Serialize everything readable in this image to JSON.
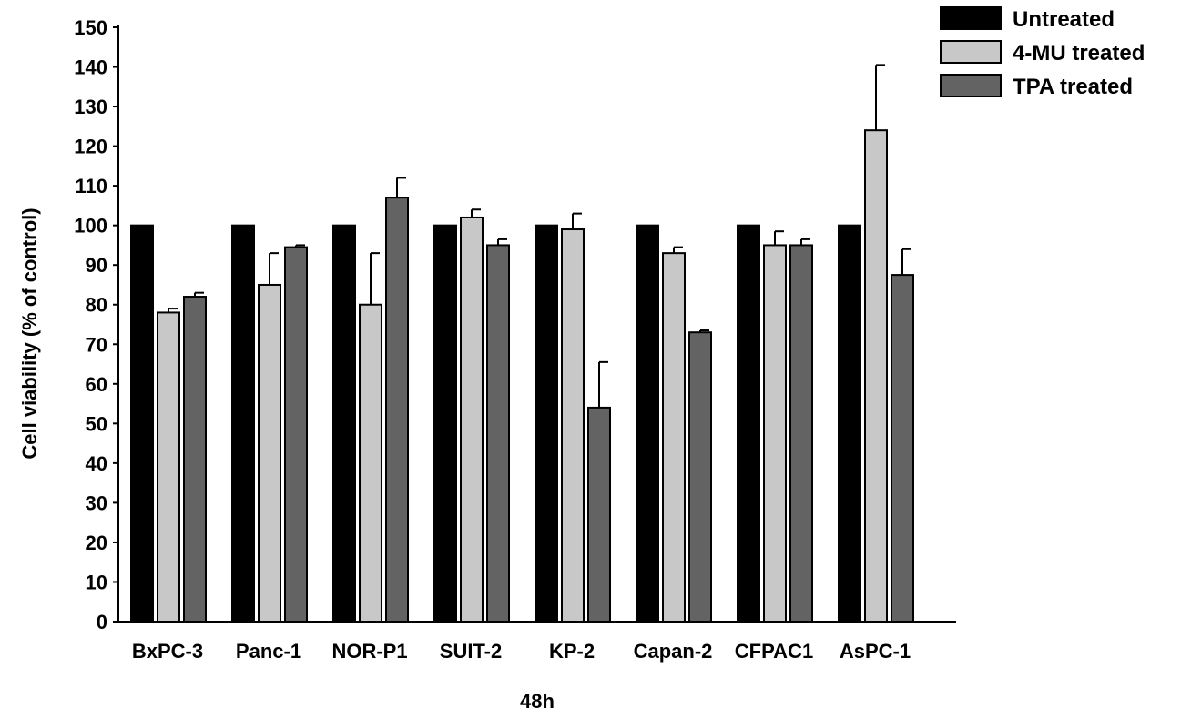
{
  "chart_data": {
    "type": "bar",
    "title": "",
    "xlabel": "48h",
    "ylabel": "Cell viability (% of control)",
    "ylim": [
      0,
      150
    ],
    "yticks": [
      0,
      10,
      20,
      30,
      40,
      50,
      60,
      70,
      80,
      90,
      100,
      110,
      120,
      130,
      140,
      150
    ],
    "grid": false,
    "legend_position": "top-right",
    "categories": [
      "BxPC-3",
      "Panc-1",
      "NOR-P1",
      "SUIT-2",
      "KP-2",
      "Capan-2",
      "CFPAC1",
      "AsPC-1"
    ],
    "series": [
      {
        "name": "Untreated",
        "color": "#000000",
        "values": [
          100,
          100,
          100,
          100,
          100,
          100,
          100,
          100
        ],
        "errors": [
          0,
          0,
          0,
          0,
          0,
          0,
          0,
          0
        ]
      },
      {
        "name": "4-MU treated",
        "color": "#c8c8c8",
        "values": [
          78,
          85,
          80,
          102,
          99,
          93,
          95,
          124
        ],
        "errors": [
          1,
          8,
          13,
          2,
          4,
          1.5,
          3.5,
          16.5
        ]
      },
      {
        "name": "TPA treated",
        "color": "#636363",
        "values": [
          82,
          94.5,
          107,
          95,
          54,
          73,
          95,
          87.5
        ],
        "errors": [
          1,
          0.5,
          5,
          1.5,
          11.5,
          0.5,
          1.5,
          6.5
        ]
      }
    ]
  }
}
